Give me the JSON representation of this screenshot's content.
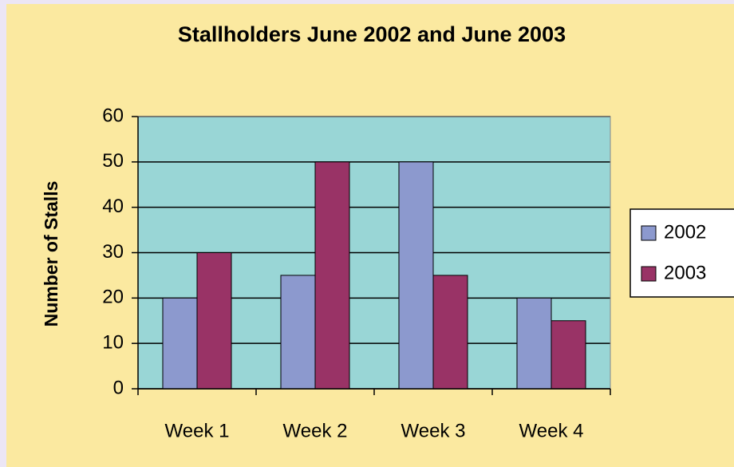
{
  "chart_data": {
    "type": "bar",
    "title": "Stallholders June 2002 and June 2003",
    "y_label": "Number of Stalls",
    "categories": [
      "Week 1",
      "Week 2",
      "Week 3",
      "Week 4"
    ],
    "series": [
      {
        "name": "2002",
        "color": "#8c99ce",
        "values": [
          20,
          25,
          50,
          20
        ]
      },
      {
        "name": "2003",
        "color": "#993366",
        "values": [
          30,
          50,
          25,
          15
        ]
      }
    ],
    "ylim": [
      0,
      60
    ],
    "yticks": [
      0,
      10,
      20,
      30,
      40,
      50,
      60
    ],
    "grid": true,
    "legend": "right"
  }
}
